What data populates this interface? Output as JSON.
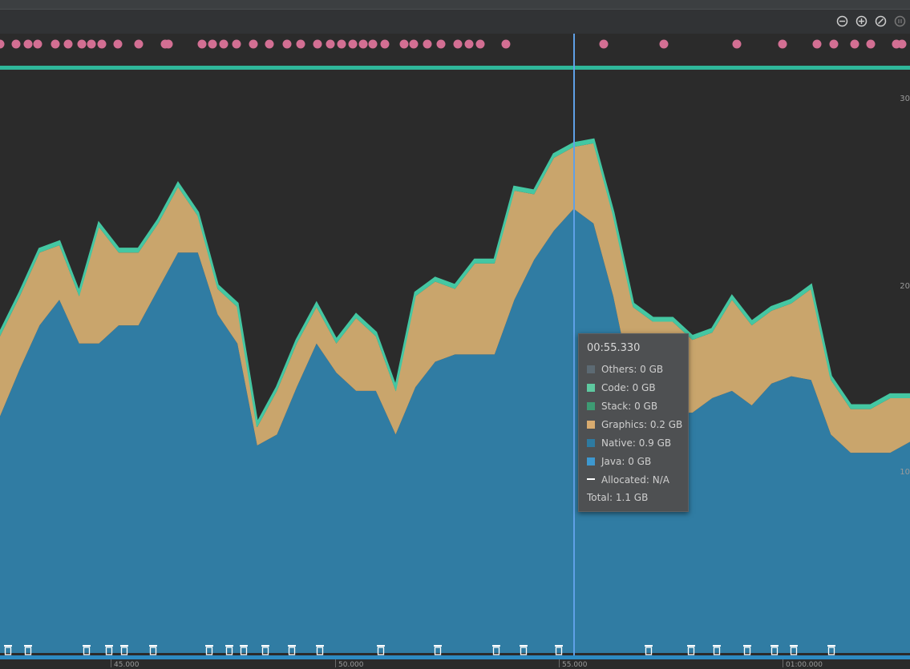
{
  "toolbar": {
    "zoom_out_label": "Zoom out",
    "zoom_in_label": "Zoom in",
    "reset_zoom_label": "Reset zoom",
    "live_label": "Live"
  },
  "timeline": {
    "ticks": [
      "45.000",
      "50.000",
      "55.000",
      "01:00.000"
    ],
    "y_labels": [
      "30",
      "20",
      "10"
    ]
  },
  "tooltip": {
    "time": "00:55.330",
    "rows": [
      {
        "label": "Others: 0 GB",
        "color": "#5c6a73"
      },
      {
        "label": "Code: 0 GB",
        "color": "#5ec9a0"
      },
      {
        "label": "Stack: 0 GB",
        "color": "#3d9b73"
      },
      {
        "label": "Graphics: 0.2 GB",
        "color": "#d8ab6f"
      },
      {
        "label": "Native: 0.9 GB",
        "color": "#2e7aa0"
      },
      {
        "label": "Java: 0 GB",
        "color": "#3d98cf"
      }
    ],
    "allocated": "Allocated: N/A",
    "total": "Total: 1.1 GB"
  },
  "colors": {
    "native": "#307ca3",
    "graphics": "#c9a56c",
    "code_stack": "#44c7a2",
    "event_dot": "#d36f93",
    "stage_bar": "#2fb79a",
    "cursor": "#5fa0e6",
    "timeline_bar": "#2d8ac2"
  },
  "chart_data": {
    "type": "area",
    "x_range": [
      "00:43.000",
      "01:04.000"
    ],
    "series": [
      {
        "name": "Native",
        "values": [
          0.65,
          0.78,
          0.9,
          0.97,
          0.85,
          0.85,
          0.9,
          0.9,
          1.0,
          1.1,
          1.1,
          0.93,
          0.85,
          0.57,
          0.6,
          0.73,
          0.85,
          0.77,
          0.72,
          0.72,
          0.6,
          0.73,
          0.8,
          0.82,
          0.82,
          0.82,
          0.97,
          1.08,
          1.16,
          1.22,
          1.18,
          0.98,
          0.72,
          0.66,
          0.66,
          0.66,
          0.7,
          0.72,
          0.68,
          0.74,
          0.76,
          0.75,
          0.6,
          0.55,
          0.55,
          0.55,
          0.58
        ]
      },
      {
        "name": "Graphics",
        "values": [
          0.22,
          0.2,
          0.2,
          0.15,
          0.13,
          0.32,
          0.2,
          0.2,
          0.18,
          0.18,
          0.1,
          0.07,
          0.1,
          0.05,
          0.12,
          0.12,
          0.1,
          0.08,
          0.2,
          0.15,
          0.12,
          0.25,
          0.22,
          0.18,
          0.25,
          0.25,
          0.3,
          0.18,
          0.2,
          0.17,
          0.22,
          0.22,
          0.23,
          0.25,
          0.25,
          0.2,
          0.18,
          0.25,
          0.22,
          0.2,
          0.2,
          0.25,
          0.15,
          0.12,
          0.12,
          0.15,
          0.12
        ]
      },
      {
        "name": "Code",
        "values": [
          0.01,
          0.01,
          0.01,
          0.01,
          0.01,
          0.01,
          0.01,
          0.01,
          0.01,
          0.01,
          0.01,
          0.01,
          0.01,
          0.01,
          0.01,
          0.01,
          0.01,
          0.01,
          0.01,
          0.01,
          0.01,
          0.01,
          0.01,
          0.01,
          0.01,
          0.01,
          0.01,
          0.01,
          0.01,
          0.01,
          0.01,
          0.01,
          0.01,
          0.01,
          0.01,
          0.01,
          0.01,
          0.01,
          0.01,
          0.01,
          0.01,
          0.01,
          0.01,
          0.01,
          0.01,
          0.01,
          0.01
        ]
      }
    ]
  }
}
